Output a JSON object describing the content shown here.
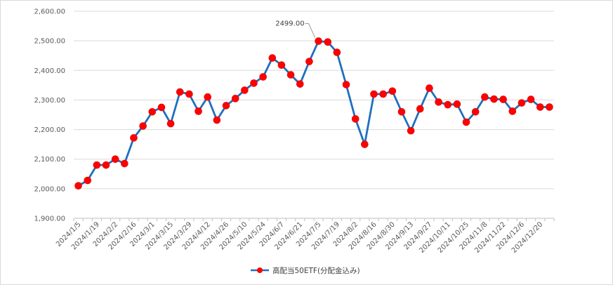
{
  "chart_data": {
    "type": "line",
    "title": "",
    "xlabel": "",
    "ylabel": "",
    "ylim": [
      1900,
      2600
    ],
    "yticks": [
      "1,900.00",
      "2,000.00",
      "2,100.00",
      "2,200.00",
      "2,300.00",
      "2,400.00",
      "2,500.00",
      "2,600.00"
    ],
    "yticks_values": [
      1900,
      2000,
      2100,
      2200,
      2300,
      2400,
      2500,
      2600
    ],
    "x_tick_labels": [
      "2024/1/5",
      "2024/1/19",
      "2024/2/2",
      "2024/2/16",
      "2024/3/1",
      "2024/3/15",
      "2024/3/29",
      "2024/4/12",
      "2024/4/26",
      "2024/5/10",
      "2024/5/24",
      "2024/6/7",
      "2024/6/21",
      "2024/7/5",
      "2024/7/19",
      "2024/8/2",
      "2024/8/16",
      "2024/8/30",
      "2024/9/13",
      "2024/9/27",
      "2024/10/11",
      "2024/10/25",
      "2024/11/8",
      "2024/11/22",
      "2024/12/6",
      "2024/12/20"
    ],
    "grid": "horizontal",
    "legend_position": "bottom",
    "series": [
      {
        "name": "高配当50ETF(分配金込み)",
        "color": "#1f6fbf",
        "marker_color": "#ff0000",
        "x": [
          "2024/1/5",
          "2024/1/12",
          "2024/1/19",
          "2024/1/26",
          "2024/2/2",
          "2024/2/9",
          "2024/2/16",
          "2024/2/23",
          "2024/3/1",
          "2024/3/8",
          "2024/3/15",
          "2024/3/22",
          "2024/3/29",
          "2024/4/5",
          "2024/4/12",
          "2024/4/19",
          "2024/4/26",
          "2024/5/3",
          "2024/5/10",
          "2024/5/17",
          "2024/5/24",
          "2024/5/31",
          "2024/6/7",
          "2024/6/14",
          "2024/6/21",
          "2024/6/28",
          "2024/7/5",
          "2024/7/12",
          "2024/7/19",
          "2024/7/26",
          "2024/8/2",
          "2024/8/9",
          "2024/8/16",
          "2024/8/23",
          "2024/8/30",
          "2024/9/6",
          "2024/9/13",
          "2024/9/20",
          "2024/9/27",
          "2024/10/4",
          "2024/10/11",
          "2024/10/18",
          "2024/10/25",
          "2024/11/1",
          "2024/11/8",
          "2024/11/15",
          "2024/11/22",
          "2024/11/29",
          "2024/12/6",
          "2024/12/13",
          "2024/12/20",
          "2024/12/27"
        ],
        "values": [
          2010,
          2028,
          2080,
          2080,
          2100,
          2085,
          2172,
          2212,
          2260,
          2275,
          2220,
          2327,
          2320,
          2262,
          2310,
          2232,
          2281,
          2305,
          2333,
          2357,
          2378,
          2442,
          2418,
          2385,
          2354,
          2430,
          2499,
          2496,
          2461,
          2352,
          2236,
          2150,
          2320,
          2320,
          2330,
          2260,
          2196,
          2270,
          2340,
          2293,
          2284,
          2286,
          2225,
          2260,
          2310,
          2303,
          2302,
          2262,
          2290,
          2302,
          2276,
          2276
        ]
      }
    ],
    "annotations": [
      {
        "label": "2499.00",
        "x": "2024/7/5",
        "y": 2499
      }
    ]
  }
}
